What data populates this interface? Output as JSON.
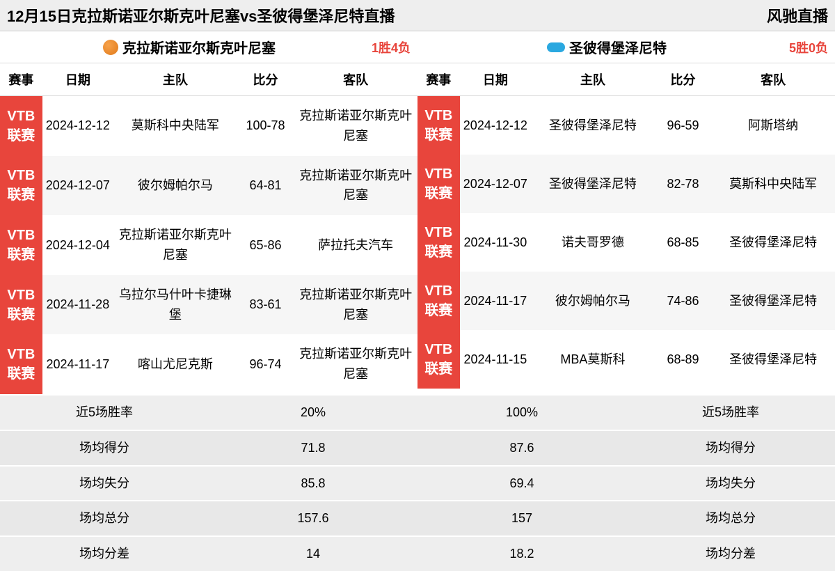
{
  "titlebar": {
    "title": "12月15日克拉斯诺亚尔斯克叶尼塞vs圣彼得堡泽尼特直播",
    "brand": "风驰直播"
  },
  "columns": {
    "league": "赛事",
    "date": "日期",
    "home": "主队",
    "score": "比分",
    "away": "客队"
  },
  "left": {
    "team": "克拉斯诺亚尔斯克叶尼塞",
    "record": "1胜4负",
    "rows": [
      {
        "league": "VTB联赛",
        "date": "2024-12-12",
        "home": "莫斯科中央陆军",
        "score": "100-78",
        "away": "克拉斯诺亚尔斯克叶尼塞"
      },
      {
        "league": "VTB联赛",
        "date": "2024-12-07",
        "home": "彼尔姆帕尔马",
        "score": "64-81",
        "away": "克拉斯诺亚尔斯克叶尼塞"
      },
      {
        "league": "VTB联赛",
        "date": "2024-12-04",
        "home": "克拉斯诺亚尔斯克叶尼塞",
        "score": "65-86",
        "away": "萨拉托夫汽车"
      },
      {
        "league": "VTB联赛",
        "date": "2024-11-28",
        "home": "乌拉尔马什叶卡捷琳堡",
        "score": "83-61",
        "away": "克拉斯诺亚尔斯克叶尼塞"
      },
      {
        "league": "VTB联赛",
        "date": "2024-11-17",
        "home": "喀山尤尼克斯",
        "score": "96-74",
        "away": "克拉斯诺亚尔斯克叶尼塞"
      }
    ],
    "stats": {
      "winrate_label": "近5场胜率",
      "winrate": "20%",
      "ppg_label": "场均得分",
      "ppg": "71.8",
      "papg_label": "场均失分",
      "papg": "85.8",
      "total_label": "场均总分",
      "total": "157.6",
      "diff_label": "场均分差",
      "diff": "14"
    }
  },
  "right": {
    "team": "圣彼得堡泽尼特",
    "record": "5胜0负",
    "rows": [
      {
        "league": "VTB联赛",
        "date": "2024-12-12",
        "home": "圣彼得堡泽尼特",
        "score": "96-59",
        "away": "阿斯塔纳"
      },
      {
        "league": "VTB联赛",
        "date": "2024-12-07",
        "home": "圣彼得堡泽尼特",
        "score": "82-78",
        "away": "莫斯科中央陆军"
      },
      {
        "league": "VTB联赛",
        "date": "2024-11-30",
        "home": "诺夫哥罗德",
        "score": "68-85",
        "away": "圣彼得堡泽尼特"
      },
      {
        "league": "VTB联赛",
        "date": "2024-11-17",
        "home": "彼尔姆帕尔马",
        "score": "74-86",
        "away": "圣彼得堡泽尼特"
      },
      {
        "league": "VTB联赛",
        "date": "2024-11-15",
        "home": "MBA莫斯科",
        "score": "68-89",
        "away": "圣彼得堡泽尼特"
      }
    ],
    "stats": {
      "winrate_label": "近5场胜率",
      "winrate": "100%",
      "ppg_label": "场均得分",
      "ppg": "87.6",
      "papg_label": "场均失分",
      "papg": "69.4",
      "total_label": "场均总分",
      "total": "157",
      "diff_label": "场均分差",
      "diff": "18.2"
    }
  },
  "style": {
    "league_bg": "#e8453c",
    "record_color": "#e8453c",
    "header_bg": "#eeeeee",
    "row_odd_bg": "#ffffff",
    "row_even_bg": "#f6f6f6",
    "stats_bg": "#eeeeee"
  }
}
